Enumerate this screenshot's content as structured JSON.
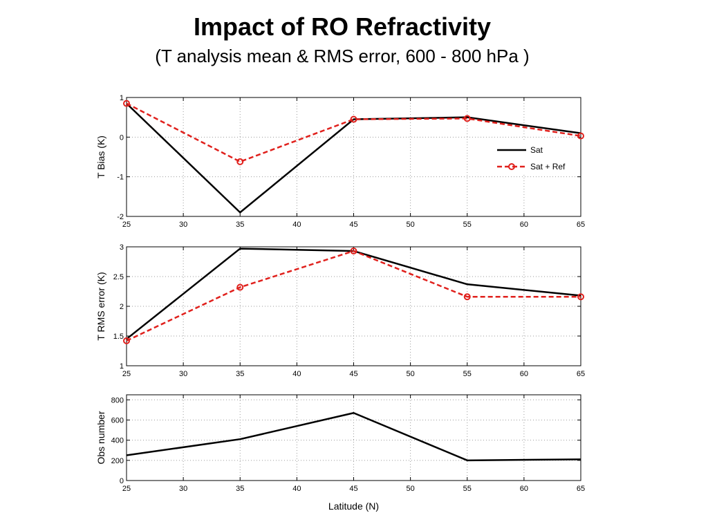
{
  "page": {
    "title": "Impact of RO Refractivity",
    "subtitle": "(T analysis mean & RMS error, 600 - 800 hPa )"
  },
  "colors": {
    "sat": "#000000",
    "sat_ref": "#e0201c",
    "grid": "#9a9a9a",
    "axis": "#000000"
  },
  "chart_data": [
    {
      "type": "line",
      "title": "",
      "xlabel": "",
      "ylabel": "T Bias (K)",
      "x": [
        25,
        35,
        45,
        55,
        65
      ],
      "xlim": [
        25,
        65
      ],
      "xticks": [
        25,
        30,
        35,
        40,
        45,
        50,
        55,
        60,
        65
      ],
      "ylim": [
        -2,
        1
      ],
      "yticks": [
        -2,
        -1,
        0,
        1
      ],
      "grid": true,
      "legend": "right",
      "series": [
        {
          "name": "Sat",
          "style": "solid",
          "marker": "none",
          "values": [
            0.85,
            -1.9,
            0.45,
            0.5,
            0.1
          ]
        },
        {
          "name": "Sat + Ref",
          "style": "dashed",
          "marker": "circle",
          "values": [
            0.85,
            -0.62,
            0.45,
            0.47,
            0.03
          ]
        }
      ]
    },
    {
      "type": "line",
      "title": "",
      "xlabel": "",
      "ylabel": "T RMS error (K)",
      "x": [
        25,
        35,
        45,
        55,
        65
      ],
      "xlim": [
        25,
        65
      ],
      "xticks": [
        25,
        30,
        35,
        40,
        45,
        50,
        55,
        60,
        65
      ],
      "ylim": [
        1,
        3
      ],
      "yticks": [
        1,
        1.5,
        2,
        2.5,
        3
      ],
      "grid": true,
      "legend": "none",
      "series": [
        {
          "name": "Sat",
          "style": "solid",
          "marker": "none",
          "values": [
            1.45,
            2.97,
            2.93,
            2.37,
            2.18
          ]
        },
        {
          "name": "Sat + Ref",
          "style": "dashed",
          "marker": "circle",
          "values": [
            1.42,
            2.32,
            2.93,
            2.16,
            2.16
          ]
        }
      ]
    },
    {
      "type": "line",
      "title": "",
      "xlabel": "Latitude (N)",
      "ylabel": "Obs number",
      "x": [
        25,
        35,
        45,
        55,
        65
      ],
      "xlim": [
        25,
        65
      ],
      "xticks": [
        25,
        30,
        35,
        40,
        45,
        50,
        55,
        60,
        65
      ],
      "ylim": [
        0,
        850
      ],
      "yticks": [
        0,
        200,
        400,
        600,
        800
      ],
      "grid": true,
      "legend": "none",
      "series": [
        {
          "name": "Sat",
          "style": "solid",
          "marker": "none",
          "values": [
            250,
            410,
            670,
            200,
            210
          ]
        }
      ]
    }
  ]
}
